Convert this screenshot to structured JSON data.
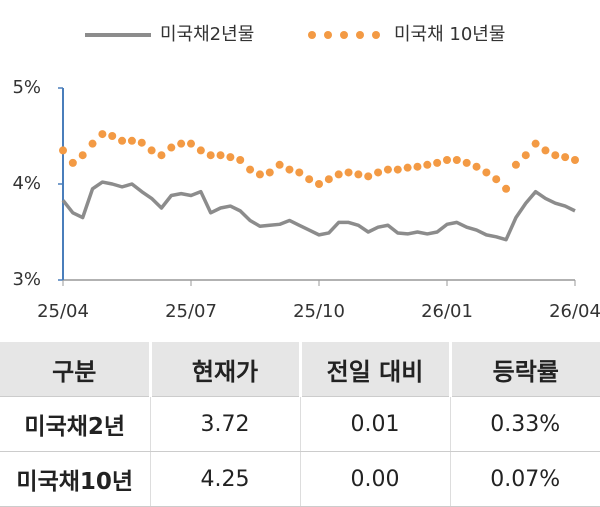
{
  "chart_data": {
    "type": "line",
    "categories": [
      "25/04",
      null,
      null,
      null,
      null,
      null,
      null,
      null,
      null,
      null,
      null,
      null,
      null,
      "25/07",
      null,
      null,
      null,
      null,
      null,
      null,
      null,
      null,
      null,
      null,
      null,
      null,
      "25/10",
      null,
      null,
      null,
      null,
      null,
      null,
      null,
      null,
      null,
      null,
      null,
      null,
      "26/01",
      null,
      null,
      null,
      null,
      null,
      null,
      null,
      null,
      null,
      null,
      null,
      null,
      "26/04"
    ],
    "series": [
      {
        "name": "미국채2년물",
        "color": "#8c8c8c",
        "style": "line",
        "values": [
          3.83,
          3.7,
          3.65,
          3.95,
          4.02,
          4.0,
          3.97,
          4.0,
          3.92,
          3.85,
          3.75,
          3.88,
          3.9,
          3.88,
          3.92,
          3.7,
          3.75,
          3.77,
          3.72,
          3.62,
          3.56,
          3.57,
          3.58,
          3.62,
          3.57,
          3.52,
          3.47,
          3.49,
          3.6,
          3.6,
          3.57,
          3.5,
          3.55,
          3.57,
          3.49,
          3.48,
          3.5,
          3.48,
          3.5,
          3.58,
          3.6,
          3.55,
          3.52,
          3.47,
          3.45,
          3.42,
          3.65,
          3.8,
          3.92,
          3.85,
          3.8,
          3.77,
          3.72
        ]
      },
      {
        "name": "미국채 10년물",
        "color": "#f39a44",
        "style": "dots",
        "values": [
          4.35,
          4.22,
          4.3,
          4.42,
          4.52,
          4.5,
          4.45,
          4.45,
          4.43,
          4.35,
          4.3,
          4.38,
          4.42,
          4.42,
          4.35,
          4.3,
          4.3,
          4.28,
          4.25,
          4.15,
          4.1,
          4.12,
          4.2,
          4.15,
          4.12,
          4.05,
          4.0,
          4.05,
          4.1,
          4.12,
          4.1,
          4.08,
          4.12,
          4.15,
          4.15,
          4.17,
          4.18,
          4.2,
          4.22,
          4.25,
          4.25,
          4.22,
          4.18,
          4.12,
          4.05,
          3.95,
          4.2,
          4.3,
          4.42,
          4.35,
          4.3,
          4.28,
          4.25
        ]
      }
    ],
    "ylim": [
      3,
      5
    ],
    "yticks": [
      {
        "value": 3,
        "label": "3%"
      },
      {
        "value": 4,
        "label": "4%"
      },
      {
        "value": 5,
        "label": "5%"
      }
    ]
  },
  "table": {
    "header": [
      "구분",
      "현재가",
      "전일 대비",
      "등락률"
    ],
    "rows": [
      [
        "미국채2년",
        "3.72",
        "0.01",
        "0.33%"
      ],
      [
        "미국채10년",
        "4.25",
        "0.00",
        "0.07%"
      ]
    ]
  }
}
